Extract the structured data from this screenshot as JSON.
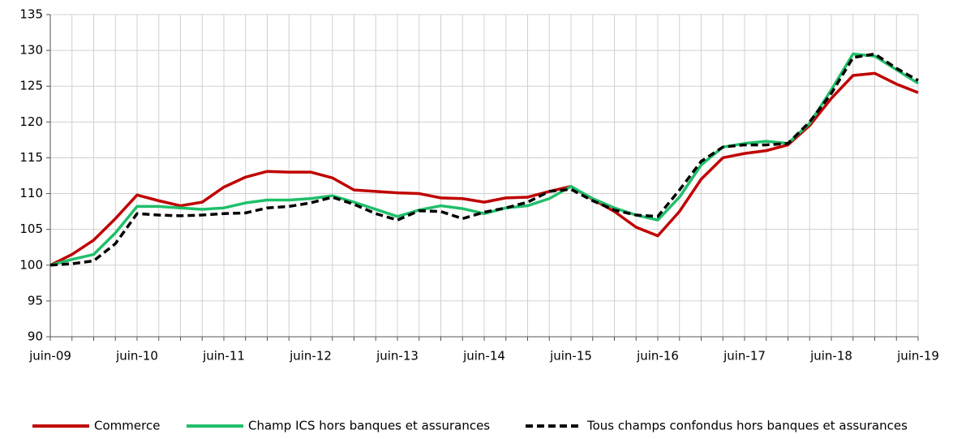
{
  "chart_data": {
    "type": "line",
    "categories": [
      "juin-09",
      null,
      null,
      null,
      "juin-10",
      null,
      null,
      null,
      "juin-11",
      null,
      null,
      null,
      "juin-12",
      null,
      null,
      null,
      "juin-13",
      null,
      null,
      null,
      "juin-14",
      null,
      null,
      null,
      "juin-15",
      null,
      null,
      null,
      "juin-16",
      null,
      null,
      null,
      "juin-17",
      null,
      null,
      null,
      "juin-18",
      null,
      null,
      null,
      "juin-19"
    ],
    "series": [
      {
        "name": "Commerce",
        "color": "#c00000",
        "dash": false,
        "values": [
          100,
          101.5,
          103.5,
          106.5,
          109.8,
          109.0,
          108.3,
          108.8,
          110.9,
          112.3,
          113.1,
          113.0,
          113.0,
          112.2,
          110.5,
          110.3,
          110.1,
          110.0,
          109.4,
          109.3,
          108.8,
          109.4,
          109.5,
          110.3,
          111.0,
          109.2,
          107.5,
          105.3,
          104.1,
          107.5,
          112.0,
          115.0,
          115.6,
          116.0,
          116.8,
          119.5,
          123.3,
          126.5,
          126.8,
          125.3,
          124.1
        ]
      },
      {
        "name": "Champ ICS hors banques et assurances",
        "color": "#1fbf6a",
        "dash": false,
        "values": [
          100,
          100.8,
          101.5,
          104.5,
          108.2,
          108.2,
          108.0,
          107.8,
          108.0,
          108.7,
          109.1,
          109.1,
          109.3,
          109.7,
          108.8,
          107.8,
          106.8,
          107.7,
          108.3,
          107.9,
          107.2,
          108.0,
          108.3,
          109.3,
          111.0,
          109.3,
          108.0,
          107.0,
          106.3,
          109.5,
          114.0,
          116.5,
          117.0,
          117.3,
          117.0,
          119.8,
          124.5,
          129.5,
          129.2,
          127.3,
          125.4
        ]
      },
      {
        "name": "Tous champs confondus hors banques et assurances",
        "color": "#000000",
        "dash": true,
        "values": [
          100,
          100.2,
          100.6,
          103.0,
          107.2,
          107.0,
          106.9,
          107.0,
          107.2,
          107.3,
          108.0,
          108.2,
          108.7,
          109.5,
          108.5,
          107.2,
          106.3,
          107.6,
          107.5,
          106.5,
          107.4,
          108.0,
          108.8,
          110.3,
          110.6,
          109.0,
          107.7,
          107.0,
          106.8,
          110.5,
          114.5,
          116.5,
          116.8,
          116.8,
          117.0,
          120.0,
          124.0,
          129.0,
          129.5,
          127.5,
          125.8
        ]
      }
    ],
    "ylim": [
      90,
      135
    ],
    "yticks": [
      90,
      95,
      100,
      105,
      110,
      115,
      120,
      125,
      130,
      135
    ],
    "grid": true,
    "legend": "bottom"
  }
}
